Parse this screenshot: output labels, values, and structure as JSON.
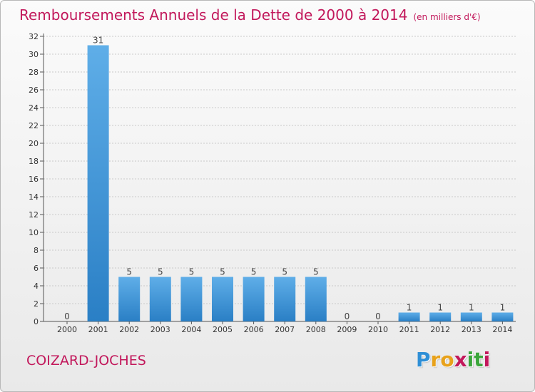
{
  "header": {
    "title": "Remboursements Annuels de la Dette de 2000 à 2014",
    "unit": "(en milliers d'€)"
  },
  "footer": {
    "commune": "COIZARD-JOCHES",
    "logo": [
      "P",
      "r",
      "o",
      "x",
      "i",
      "t",
      "i"
    ],
    "logo_colors": [
      "#2f8fd6",
      "#e8a21b",
      "#e8a21b",
      "#c2185b",
      "#3aa63a",
      "#3aa63a",
      "#c2185b"
    ]
  },
  "colors": {
    "bar_light": "#5faee8",
    "bar_dark": "#2a7fc5",
    "grid": "#c9c9c9",
    "axis": "#555555"
  },
  "chart_data": {
    "type": "bar",
    "title": "Remboursements Annuels de la Dette de 2000 à 2014",
    "subtitle": "(en milliers d'€)",
    "xlabel": "",
    "ylabel": "",
    "categories": [
      "2000",
      "2001",
      "2002",
      "2003",
      "2004",
      "2005",
      "2006",
      "2007",
      "2008",
      "2009",
      "2010",
      "2011",
      "2012",
      "2013",
      "2014"
    ],
    "values": [
      0,
      31,
      5,
      5,
      5,
      5,
      5,
      5,
      5,
      0,
      0,
      1,
      1,
      1,
      1
    ],
    "labels": [
      "0",
      "31",
      "5",
      "5",
      "5",
      "5",
      "5",
      "5",
      "5",
      "0",
      "0",
      "1",
      "1",
      "1",
      "1"
    ],
    "ylim": [
      0,
      32
    ],
    "yticks": [
      "0",
      "2",
      "4",
      "6",
      "8",
      "10",
      "12",
      "14",
      "16",
      "18",
      "20",
      "22",
      "24",
      "26",
      "28",
      "30",
      "32"
    ],
    "grid": true,
    "legend": "none"
  }
}
